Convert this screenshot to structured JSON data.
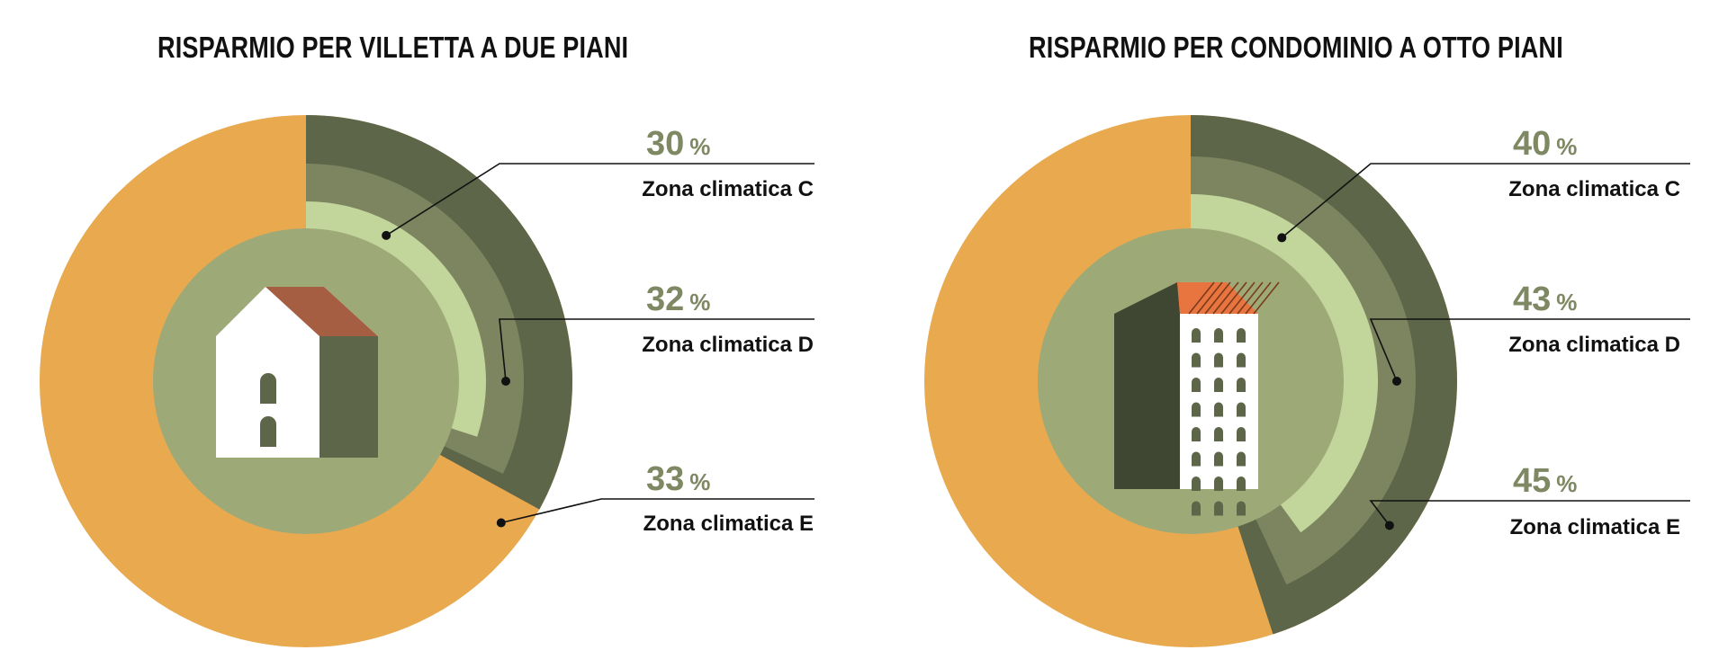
{
  "colors": {
    "background": "#ffffff",
    "rest": "#e8a94f",
    "zone_c": "#c2d59a",
    "zone_d": "#7c8560",
    "zone_e": "#5d6649",
    "center_disc": "#9daa78",
    "label_value": "#7e8862",
    "label_text": "#111111",
    "house_wall": "#ffffff",
    "house_roof": "#a55e42",
    "house_side": "#5d6649",
    "tower_side": "#3f4732",
    "tower_roof": "#e8743f"
  },
  "chart_data": [
    {
      "type": "radial-bar",
      "title": "RISPARMIO PER VILLETTA A DUE PIANI",
      "unit": "%",
      "center_icon": "house-icon",
      "categories": [
        "Zona climatica C",
        "Zona climatica D",
        "Zona climatica E"
      ],
      "values": [
        30,
        32,
        33
      ],
      "series": [
        {
          "name": "Zona climatica C",
          "value": 30
        },
        {
          "name": "Zona climatica D",
          "value": 32
        },
        {
          "name": "Zona climatica E",
          "value": 33
        }
      ],
      "range": [
        0,
        100
      ],
      "legend": "right"
    },
    {
      "type": "radial-bar",
      "title": "RISPARMIO PER CONDOMINIO A OTTO PIANI",
      "unit": "%",
      "center_icon": "apartment-building-icon",
      "categories": [
        "Zona climatica C",
        "Zona climatica D",
        "Zona climatica E"
      ],
      "values": [
        40,
        43,
        45
      ],
      "series": [
        {
          "name": "Zona climatica C",
          "value": 40
        },
        {
          "name": "Zona climatica D",
          "value": 43
        },
        {
          "name": "Zona climatica E",
          "value": 45
        }
      ],
      "range": [
        0,
        100
      ],
      "legend": "right"
    }
  ]
}
